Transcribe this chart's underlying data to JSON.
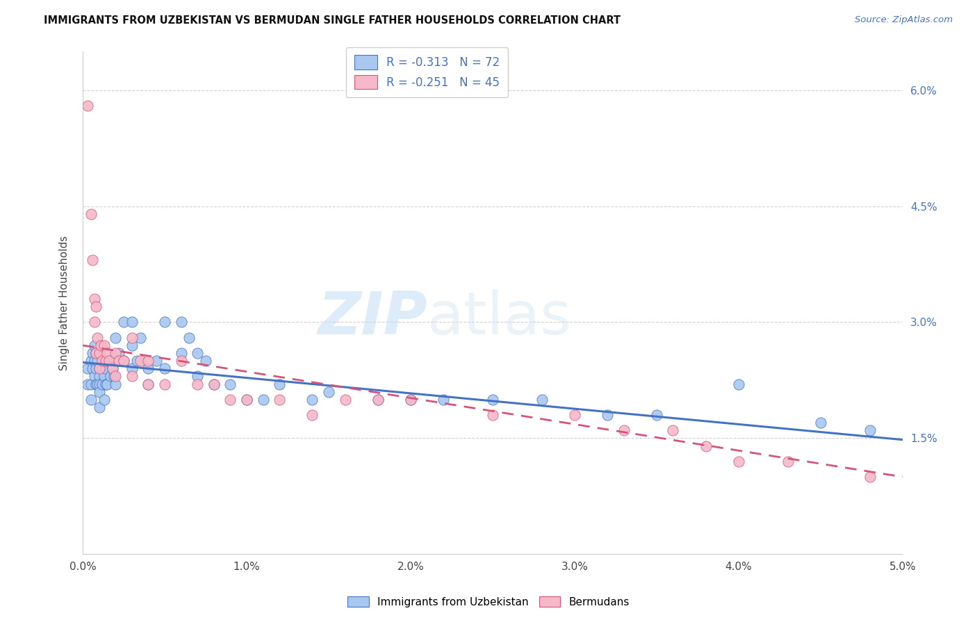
{
  "title": "IMMIGRANTS FROM UZBEKISTAN VS BERMUDAN SINGLE FATHER HOUSEHOLDS CORRELATION CHART",
  "source": "Source: ZipAtlas.com",
  "ylabel": "Single Father Households",
  "xlim": [
    0.0,
    0.05
  ],
  "ylim": [
    0.0,
    0.065
  ],
  "xticks": [
    0.0,
    0.01,
    0.02,
    0.03,
    0.04,
    0.05
  ],
  "yticks": [
    0.0,
    0.015,
    0.03,
    0.045,
    0.06
  ],
  "xtick_labels": [
    "0.0%",
    "1.0%",
    "2.0%",
    "3.0%",
    "4.0%",
    "5.0%"
  ],
  "ytick_labels_right": [
    "",
    "1.5%",
    "3.0%",
    "4.5%",
    "6.0%"
  ],
  "color_blue": "#a8c8f0",
  "color_pink": "#f5b8c8",
  "line_blue": "#4472c4",
  "line_pink": "#d4547a",
  "legend_label1": "Immigrants from Uzbekistan",
  "legend_label2": "Bermudans",
  "watermark_zip": "ZIP",
  "watermark_atlas": "atlas",
  "background_color": "#ffffff",
  "grid_color": "#d0d0d0",
  "blue_x": [
    0.0003,
    0.0003,
    0.0005,
    0.0005,
    0.0005,
    0.0006,
    0.0006,
    0.0007,
    0.0007,
    0.0007,
    0.0008,
    0.0008,
    0.0008,
    0.0009,
    0.0009,
    0.001,
    0.001,
    0.001,
    0.001,
    0.001,
    0.0012,
    0.0012,
    0.0013,
    0.0013,
    0.0013,
    0.0014,
    0.0014,
    0.0015,
    0.0015,
    0.0016,
    0.0017,
    0.0018,
    0.0019,
    0.002,
    0.002,
    0.002,
    0.0022,
    0.0025,
    0.0025,
    0.003,
    0.003,
    0.003,
    0.0033,
    0.0035,
    0.004,
    0.004,
    0.0045,
    0.005,
    0.005,
    0.006,
    0.006,
    0.0065,
    0.007,
    0.007,
    0.0075,
    0.008,
    0.009,
    0.01,
    0.011,
    0.012,
    0.014,
    0.015,
    0.018,
    0.02,
    0.022,
    0.025,
    0.028,
    0.032,
    0.035,
    0.04,
    0.045,
    0.048
  ],
  "blue_y": [
    0.024,
    0.022,
    0.025,
    0.022,
    0.02,
    0.026,
    0.024,
    0.027,
    0.025,
    0.023,
    0.026,
    0.024,
    0.022,
    0.025,
    0.022,
    0.024,
    0.023,
    0.022,
    0.021,
    0.019,
    0.024,
    0.022,
    0.025,
    0.023,
    0.02,
    0.024,
    0.022,
    0.025,
    0.022,
    0.025,
    0.023,
    0.024,
    0.023,
    0.028,
    0.025,
    0.022,
    0.026,
    0.03,
    0.025,
    0.03,
    0.027,
    0.024,
    0.025,
    0.028,
    0.024,
    0.022,
    0.025,
    0.03,
    0.024,
    0.03,
    0.026,
    0.028,
    0.026,
    0.023,
    0.025,
    0.022,
    0.022,
    0.02,
    0.02,
    0.022,
    0.02,
    0.021,
    0.02,
    0.02,
    0.02,
    0.02,
    0.02,
    0.018,
    0.018,
    0.022,
    0.017,
    0.016
  ],
  "pink_x": [
    0.0003,
    0.0005,
    0.0006,
    0.0007,
    0.0007,
    0.0008,
    0.0008,
    0.0009,
    0.001,
    0.001,
    0.0011,
    0.0012,
    0.0013,
    0.0014,
    0.0015,
    0.0016,
    0.0018,
    0.002,
    0.002,
    0.0022,
    0.0025,
    0.003,
    0.003,
    0.0035,
    0.004,
    0.004,
    0.005,
    0.006,
    0.007,
    0.008,
    0.009,
    0.01,
    0.012,
    0.014,
    0.016,
    0.018,
    0.02,
    0.025,
    0.03,
    0.033,
    0.036,
    0.038,
    0.04,
    0.043,
    0.048
  ],
  "pink_y": [
    0.058,
    0.044,
    0.038,
    0.033,
    0.03,
    0.032,
    0.026,
    0.028,
    0.026,
    0.024,
    0.027,
    0.025,
    0.027,
    0.025,
    0.026,
    0.025,
    0.024,
    0.026,
    0.023,
    0.025,
    0.025,
    0.028,
    0.023,
    0.025,
    0.025,
    0.022,
    0.022,
    0.025,
    0.022,
    0.022,
    0.02,
    0.02,
    0.02,
    0.018,
    0.02,
    0.02,
    0.02,
    0.018,
    0.018,
    0.016,
    0.016,
    0.014,
    0.012,
    0.012,
    0.01
  ],
  "blue_intercept": 0.0248,
  "blue_slope": -0.2,
  "pink_intercept": 0.027,
  "pink_slope": -0.34
}
